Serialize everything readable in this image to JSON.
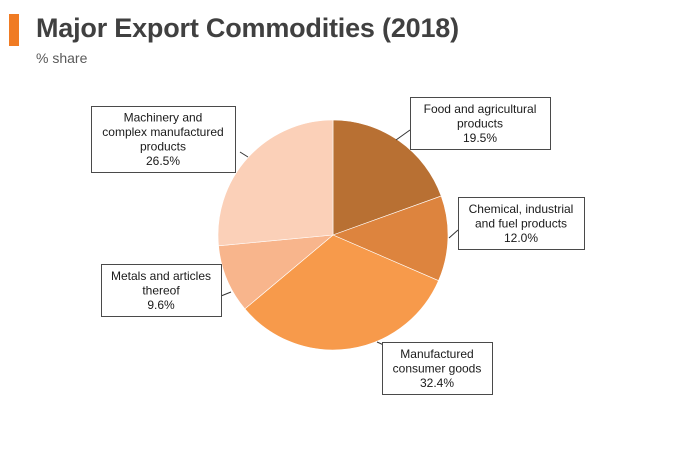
{
  "header": {
    "title": "Major Export Commodities (2018)",
    "subtitle": "% share",
    "accent_color": "#f07b23"
  },
  "chart_data": {
    "type": "pie",
    "title": "Major Export Commodities (2018)",
    "subtitle": "% share",
    "unit": "%",
    "start_angle_deg": 0,
    "direction": "clockwise",
    "slices": [
      {
        "label_lines": [
          "Food and agricultural",
          "products"
        ],
        "value": 19.5,
        "value_text": "19.5%",
        "color": "#b87033"
      },
      {
        "label_lines": [
          "Chemical, industrial",
          "and fuel products"
        ],
        "value": 12.0,
        "value_text": "12.0%",
        "color": "#dd843e"
      },
      {
        "label_lines": [
          "Manufactured",
          "consumer goods"
        ],
        "value": 32.4,
        "value_text": "32.4%",
        "color": "#f79a4b"
      },
      {
        "label_lines": [
          "Metals and articles",
          "thereof"
        ],
        "value": 9.6,
        "value_text": "9.6%",
        "color": "#f8b58c"
      },
      {
        "label_lines": [
          "Machinery and",
          "complex manufactured",
          "products"
        ],
        "value": 26.5,
        "value_text": "26.5%",
        "color": "#fbd0b8"
      }
    ]
  }
}
